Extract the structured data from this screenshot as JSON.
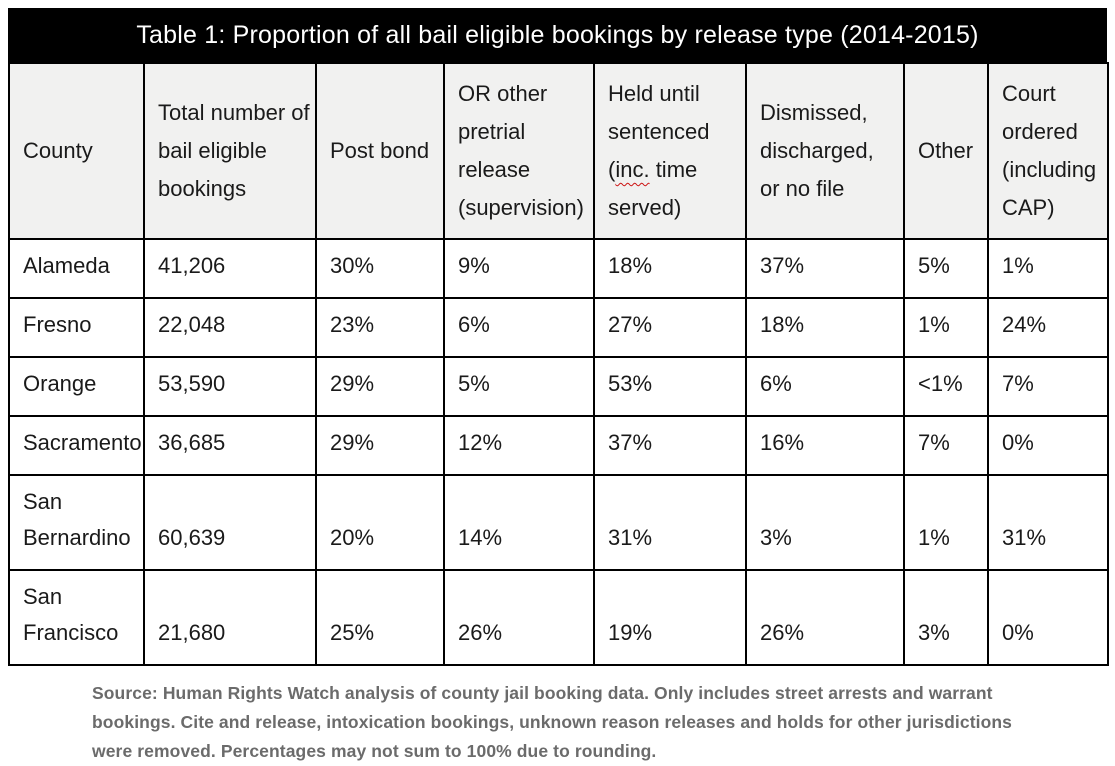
{
  "title": "Table 1: Proportion of all bail eligible bookings by release type (2014-2015)",
  "table": {
    "header": {
      "county": "County",
      "total": "Total number of bail eligible bookings",
      "post_bond": "Post bond",
      "or_release": "OR other pretrial release (supervision)",
      "held_prefix": "Held until sentenced (",
      "held_misspelled": "inc.",
      "held_suffix": " time served)",
      "dismissed": "Dismissed, discharged, or no file",
      "other": "Other",
      "court": "Court ordered (including CAP)"
    },
    "rows": [
      {
        "cells": [
          "Alameda",
          "41,206",
          "30%",
          "9%",
          "18%",
          "37%",
          "5%",
          "1%"
        ]
      },
      {
        "cells": [
          "Fresno",
          "22,048",
          "23%",
          "6%",
          "27%",
          "18%",
          "1%",
          "24%"
        ]
      },
      {
        "cells": [
          "Orange",
          "53,590",
          "29%",
          "5%",
          "53%",
          "6%",
          "<1%",
          "7%"
        ]
      },
      {
        "cells": [
          "Sacramento",
          "36,685",
          "29%",
          "12%",
          "37%",
          "16%",
          "7%",
          "0%"
        ]
      },
      {
        "cells": [
          "San Bernardino",
          "60,639",
          "20%",
          "14%",
          "31%",
          "3%",
          "1%",
          "31%"
        ]
      },
      {
        "cells": [
          "San Francisco",
          "21,680",
          "25%",
          "26%",
          "19%",
          "26%",
          "3%",
          "0%"
        ]
      }
    ]
  },
  "source_note": "Source: Human Rights Watch analysis of county jail booking data. Only includes street arrests and warrant bookings. Cite and release, intoxication bookings, unknown reason releases and holds for other jurisdictions were removed. Percentages may not sum to 100% due to rounding.",
  "colors": {
    "title_bar_bg": "#000000",
    "title_bar_text": "#ffffff",
    "header_row_bg": "#f1f1f0",
    "border": "#000000",
    "spellcheck_underline": "#cc1111",
    "source_text": "#6b6b6b"
  }
}
